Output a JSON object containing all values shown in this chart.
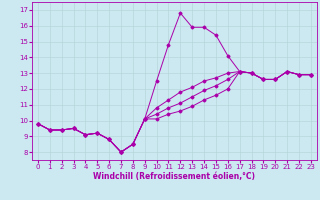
{
  "xlabel": "Windchill (Refroidissement éolien,°C)",
  "background_color": "#cce8f0",
  "grid_color": "#b0d4d8",
  "line_color": "#aa00aa",
  "xlim": [
    -0.5,
    23.5
  ],
  "ylim": [
    7.5,
    17.5
  ],
  "xticks": [
    0,
    1,
    2,
    3,
    4,
    5,
    6,
    7,
    8,
    9,
    10,
    11,
    12,
    13,
    14,
    15,
    16,
    17,
    18,
    19,
    20,
    21,
    22,
    23
  ],
  "yticks": [
    8,
    9,
    10,
    11,
    12,
    13,
    14,
    15,
    16,
    17
  ],
  "series1_x": [
    0,
    1,
    2,
    3,
    4,
    5,
    6,
    7,
    8,
    9,
    10,
    11,
    12,
    13,
    14,
    15,
    16,
    17,
    18,
    19,
    20,
    21,
    22,
    23
  ],
  "series1_y": [
    9.8,
    9.4,
    9.4,
    9.5,
    9.1,
    9.2,
    8.8,
    8.0,
    8.5,
    10.1,
    12.5,
    14.8,
    16.8,
    15.9,
    15.9,
    15.4,
    14.1,
    13.1,
    13.0,
    12.6,
    12.6,
    13.1,
    12.9,
    12.9
  ],
  "series2_x": [
    0,
    1,
    2,
    3,
    4,
    5,
    6,
    7,
    8,
    9,
    10,
    11,
    12,
    13,
    14,
    15,
    16,
    17,
    18,
    19,
    20,
    21,
    22,
    23
  ],
  "series2_y": [
    9.8,
    9.4,
    9.4,
    9.5,
    9.1,
    9.2,
    8.8,
    8.0,
    8.5,
    10.1,
    10.8,
    11.3,
    11.8,
    12.1,
    12.5,
    12.7,
    13.0,
    13.1,
    13.0,
    12.6,
    12.6,
    13.1,
    12.9,
    12.9
  ],
  "series3_x": [
    0,
    1,
    2,
    3,
    4,
    5,
    6,
    7,
    8,
    9,
    10,
    11,
    12,
    13,
    14,
    15,
    16,
    17,
    18,
    19,
    20,
    21,
    22,
    23
  ],
  "series3_y": [
    9.8,
    9.4,
    9.4,
    9.5,
    9.1,
    9.2,
    8.8,
    8.0,
    8.5,
    10.1,
    10.4,
    10.8,
    11.1,
    11.5,
    11.9,
    12.2,
    12.6,
    13.1,
    13.0,
    12.6,
    12.6,
    13.1,
    12.9,
    12.9
  ],
  "series4_x": [
    0,
    1,
    2,
    3,
    4,
    5,
    6,
    7,
    8,
    9,
    10,
    11,
    12,
    13,
    14,
    15,
    16,
    17,
    18,
    19,
    20,
    21,
    22,
    23
  ],
  "series4_y": [
    9.8,
    9.4,
    9.4,
    9.5,
    9.1,
    9.2,
    8.8,
    8.0,
    8.5,
    10.1,
    10.1,
    10.4,
    10.6,
    10.9,
    11.3,
    11.6,
    12.0,
    13.1,
    13.0,
    12.6,
    12.6,
    13.1,
    12.9,
    12.9
  ],
  "tick_fontsize": 5.0,
  "xlabel_fontsize": 5.5
}
